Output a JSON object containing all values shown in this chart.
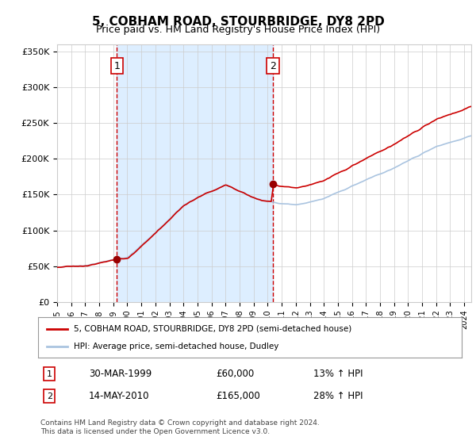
{
  "title": "5, COBHAM ROAD, STOURBRIDGE, DY8 2PD",
  "subtitle": "Price paid vs. HM Land Registry's House Price Index (HPI)",
  "legend_line1": "5, COBHAM ROAD, STOURBRIDGE, DY8 2PD (semi-detached house)",
  "legend_line2": "HPI: Average price, semi-detached house, Dudley",
  "footnote": "Contains HM Land Registry data © Crown copyright and database right 2024.\nThis data is licensed under the Open Government Licence v3.0.",
  "purchase1_date": 1999.25,
  "purchase1_price": 60000,
  "purchase1_label": "30-MAR-1999",
  "purchase1_pct": "13%",
  "purchase2_date": 2010.37,
  "purchase2_price": 165000,
  "purchase2_label": "14-MAY-2010",
  "purchase2_pct": "28%",
  "hpi_color": "#aac4e0",
  "price_color": "#cc0000",
  "dot_color": "#990000",
  "vline_color": "#cc0000",
  "shade_color": "#ddeeff",
  "grid_color": "#cccccc",
  "bg_color": "#ffffff",
  "title_color": "#000000",
  "ylim": [
    0,
    360000
  ],
  "xlim_start": 1995.0,
  "xlim_end": 2024.5
}
